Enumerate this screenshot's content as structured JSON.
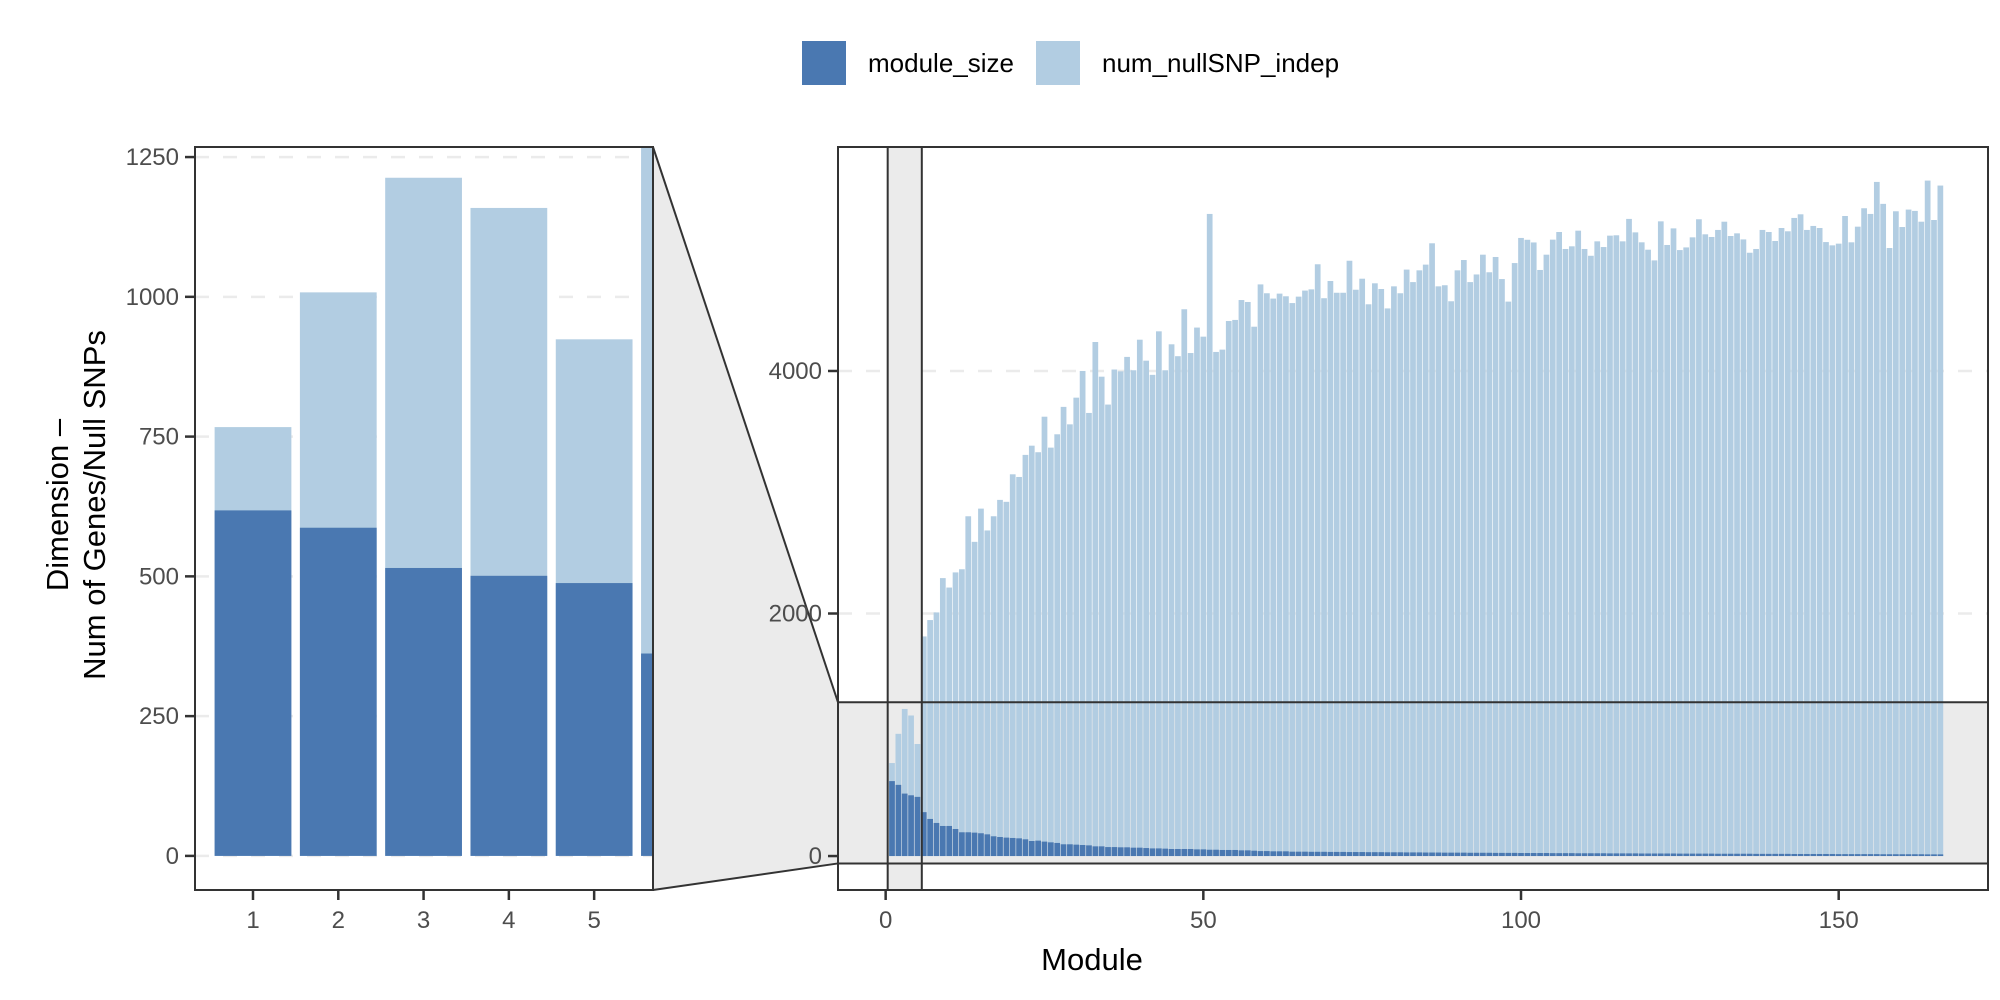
{
  "legend": {
    "items": [
      {
        "label": "module_size",
        "color": "#4A78B1"
      },
      {
        "label": "num_nullSNP_indep",
        "color": "#B2CDE2"
      }
    ]
  },
  "chart_data": {
    "type": "bar",
    "position": "identity (module_size drawn over num_nullSNP_indep)",
    "xlabel": "Module",
    "ylabel": [
      "Dimension –",
      "Num of Genes/Null SNPs"
    ],
    "legend_position": "top",
    "grid": "horizontal major gridlines, dashed",
    "x": [
      1,
      2,
      3,
      4,
      5,
      6,
      7,
      8,
      9,
      10,
      11,
      12,
      13,
      14,
      15,
      16,
      17,
      18,
      19,
      20,
      21,
      22,
      23,
      24,
      25,
      26,
      27,
      28,
      29,
      30,
      31,
      32,
      33,
      34,
      35,
      36,
      37,
      38,
      39,
      40,
      41,
      42,
      43,
      44,
      45,
      46,
      47,
      48,
      49,
      50,
      51,
      52,
      53,
      54,
      55,
      56,
      57,
      58,
      59,
      60,
      61,
      62,
      63,
      64,
      65,
      66,
      67,
      68,
      69,
      70,
      71,
      72,
      73,
      74,
      75,
      76,
      77,
      78,
      79,
      80,
      81,
      82,
      83,
      84,
      85,
      86,
      87,
      88,
      89,
      90,
      91,
      92,
      93,
      94,
      95,
      96,
      97,
      98,
      99,
      100,
      101,
      102,
      103,
      104,
      105,
      106,
      107,
      108,
      109,
      110,
      111,
      112,
      113,
      114,
      115,
      116,
      117,
      118,
      119,
      120,
      121,
      122,
      123,
      124,
      125,
      126,
      127,
      128,
      129,
      130,
      131,
      132,
      133,
      134,
      135,
      136,
      137,
      138,
      139,
      140,
      141,
      142,
      143,
      144,
      145,
      146,
      147,
      148,
      149,
      150,
      151,
      152,
      153,
      154,
      155,
      156,
      157,
      158,
      159,
      160,
      161,
      162,
      163,
      164,
      165,
      166
    ],
    "series": [
      {
        "name": "num_nullSNP_indep",
        "color": "#B2CDE2",
        "values": [
          767,
          1008,
          1213,
          1159,
          924,
          1811,
          1946,
          2009,
          2292,
          2214,
          2339,
          2365,
          2802,
          2591,
          2865,
          2685,
          2802,
          2937,
          2921,
          3148,
          3126,
          3308,
          3384,
          3330,
          3623,
          3368,
          3478,
          3704,
          3560,
          3780,
          4000,
          3654,
          4239,
          3953,
          3723,
          4012,
          3997,
          4116,
          4006,
          4258,
          4085,
          3968,
          4327,
          4006,
          4220,
          4122,
          4509,
          4148,
          4358,
          4283,
          5295,
          4157,
          4176,
          4412,
          4421,
          4585,
          4569,
          4365,
          4714,
          4641,
          4597,
          4638,
          4616,
          4560,
          4613,
          4663,
          4673,
          4880,
          4600,
          4742,
          4645,
          4645,
          4909,
          4670,
          4761,
          4550,
          4723,
          4676,
          4516,
          4698,
          4641,
          4836,
          4733,
          4830,
          4877,
          5053,
          4698,
          4707,
          4575,
          4830,
          4915,
          4733,
          4796,
          4959,
          4814,
          4940,
          4758,
          4572,
          4890,
          5097,
          5082,
          5060,
          4833,
          4959,
          5083,
          5146,
          5006,
          5028,
          5157,
          5006,
          4950,
          5069,
          5022,
          5116,
          5119,
          5069,
          5254,
          5143,
          5061,
          5000,
          4912,
          5234,
          5039,
          5176,
          4997,
          5019,
          5102,
          5251,
          5127,
          5105,
          5163,
          5231,
          5113,
          5135,
          5085,
          4975,
          5006,
          5163,
          5146,
          5072,
          5179,
          5152,
          5262,
          5292,
          5163,
          5196,
          5179,
          5063,
          5036,
          5050,
          5278,
          5061,
          5190,
          5342,
          5295,
          5559,
          5378,
          5014,
          5317,
          5187,
          5331,
          5320,
          5231,
          5570,
          5245,
          5529
        ]
      },
      {
        "name": "module_size",
        "color": "#4A78B1",
        "values": [
          618,
          587,
          515,
          501,
          488,
          362,
          306,
          273,
          248,
          248,
          223,
          196,
          196,
          193,
          188,
          179,
          163,
          157,
          152,
          149,
          146,
          138,
          124,
          127,
          119,
          113,
          108,
          97,
          97,
          94,
          91,
          88,
          80,
          80,
          74,
          74,
          72,
          72,
          69,
          69,
          66,
          63,
          63,
          61,
          58,
          58,
          58,
          58,
          55,
          55,
          52,
          52,
          50,
          50,
          50,
          47,
          47,
          44,
          41,
          41,
          39,
          39,
          39,
          36,
          36,
          36,
          35,
          35,
          35,
          34,
          34,
          34,
          33,
          33,
          33,
          32,
          32,
          32,
          31,
          31,
          31,
          30,
          30,
          30,
          29,
          29,
          29,
          28,
          28,
          28,
          28,
          27,
          27,
          27,
          27,
          26,
          26,
          26,
          26,
          25,
          25,
          25,
          25,
          25,
          24,
          24,
          24,
          24,
          23,
          23,
          23,
          23,
          23,
          22,
          22,
          22,
          22,
          22,
          21,
          21,
          21,
          21,
          21,
          21,
          20,
          20,
          20,
          20,
          20,
          20,
          19,
          19,
          19,
          19,
          19,
          19,
          18,
          18,
          18,
          18,
          18,
          18,
          17,
          17,
          17,
          17,
          17,
          17,
          17,
          16,
          16,
          16,
          16,
          16,
          16,
          16,
          15,
          15,
          15,
          15,
          15,
          15,
          15,
          14,
          14,
          14
        ]
      }
    ],
    "panels": [
      {
        "id": "zoom",
        "xlim": [
          0.32,
          5.69
        ],
        "ylim": [
          -61,
          1268
        ],
        "xticks": [
          1,
          2,
          3,
          4,
          5
        ],
        "yticks": [
          0,
          250,
          500,
          750,
          1000,
          1250
        ]
      },
      {
        "id": "main",
        "xlim": [
          -7.5,
          173.5
        ],
        "ylim": [
          -280,
          5847
        ],
        "xticks": [
          0,
          50,
          100,
          150
        ],
        "yticks": [
          0,
          2000,
          4000
        ],
        "zoom_region": {
          "x": [
            0.32,
            5.69
          ],
          "y": [
            -61,
            1268
          ]
        }
      }
    ]
  }
}
